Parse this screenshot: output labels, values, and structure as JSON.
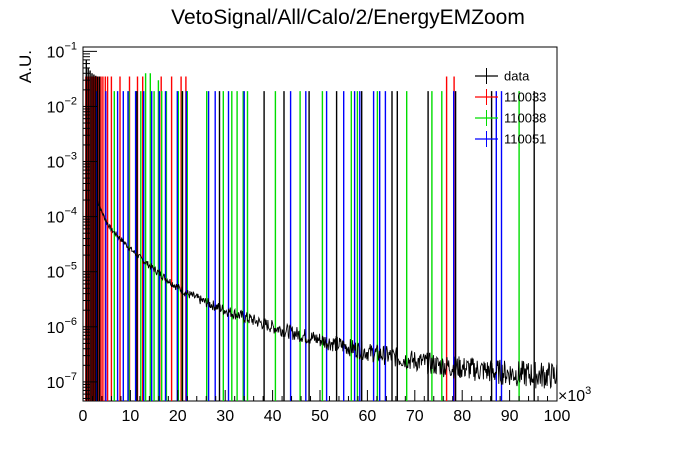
{
  "chart_data": {
    "type": "line",
    "title": "VetoSignal/All/Calo/2/EnergyEMZoom",
    "ylabel": "A.U.",
    "xlabel": "",
    "x_multiplier_label": "×10",
    "x_multiplier_exponent": "3",
    "xlim": [
      0,
      100000
    ],
    "ylim": [
      4.5e-08,
      0.12
    ],
    "y_scale": "log",
    "grid": false,
    "legend_position": "top-right",
    "x_ticks": [
      0,
      10000,
      20000,
      30000,
      40000,
      50000,
      60000,
      70000,
      80000,
      90000,
      100000
    ],
    "x_tick_labels": [
      "0",
      "10",
      "20",
      "30",
      "40",
      "50",
      "60",
      "70",
      "80",
      "90",
      "100"
    ],
    "y_ticks": [
      1e-07,
      1e-06,
      1e-05,
      0.0001,
      0.001,
      0.01,
      0.1
    ],
    "y_tick_labels": [
      {
        "base": "10",
        "exp": "−7"
      },
      {
        "base": "10",
        "exp": "−6"
      },
      {
        "base": "10",
        "exp": "−5"
      },
      {
        "base": "10",
        "exp": "−4"
      },
      {
        "base": "10",
        "exp": "−3"
      },
      {
        "base": "10",
        "exp": "−2"
      },
      {
        "base": "10",
        "exp": "−1"
      }
    ],
    "series": [
      {
        "name": "data",
        "color": "#000000",
        "style": "histogram",
        "points": [
          [
            3000,
            0.0002
          ],
          [
            4000,
            0.00012
          ],
          [
            5000,
            8e-05
          ],
          [
            6000,
            5.8e-05
          ],
          [
            8000,
            3.9e-05
          ],
          [
            10000,
            2.6e-05
          ],
          [
            12000,
            1.8e-05
          ],
          [
            14000,
            1.3e-05
          ],
          [
            16000,
            9.5e-06
          ],
          [
            18000,
            7e-06
          ],
          [
            20000,
            5.2e-06
          ],
          [
            22000,
            4e-06
          ],
          [
            25000,
            3e-06
          ],
          [
            30000,
            2e-06
          ],
          [
            35000,
            1.4e-06
          ],
          [
            40000,
            1e-06
          ],
          [
            45000,
            7.5e-07
          ],
          [
            50000,
            5.8e-07
          ],
          [
            55000,
            4.5e-07
          ],
          [
            60000,
            3.5e-07
          ],
          [
            65000,
            2.9e-07
          ],
          [
            70000,
            2.4e-07
          ],
          [
            75000,
            2e-07
          ],
          [
            80000,
            1.8e-07
          ],
          [
            85000,
            1.6e-07
          ],
          [
            90000,
            1.45e-07
          ],
          [
            95000,
            1.35e-07
          ],
          [
            100000,
            1.3e-07
          ]
        ]
      },
      {
        "name": "110033",
        "color": "#ff0000",
        "style": "spikes",
        "spikes": [
          [
            600,
            0.035
          ],
          [
            900,
            0.035
          ],
          [
            1200,
            0.035
          ],
          [
            1500,
            0.035
          ],
          [
            1800,
            0.035
          ],
          [
            2100,
            0.035
          ],
          [
            2400,
            0.035
          ],
          [
            2700,
            0.035
          ],
          [
            3000,
            0.035
          ],
          [
            3400,
            0.035
          ],
          [
            3800,
            0.035
          ],
          [
            4200,
            0.035
          ],
          [
            4700,
            0.035
          ],
          [
            5200,
            0.035
          ],
          [
            6000,
            0.035
          ],
          [
            7800,
            0.035
          ],
          [
            9800,
            0.035
          ],
          [
            11500,
            0.035
          ],
          [
            12600,
            0.035
          ],
          [
            16500,
            0.035
          ],
          [
            18700,
            0.035
          ],
          [
            20700,
            0.035
          ],
          [
            21700,
            0.035
          ],
          [
            76700,
            0.035
          ],
          [
            78300,
            0.035
          ]
        ]
      },
      {
        "name": "110038",
        "color": "#00dd00",
        "style": "spikes",
        "spikes": [
          [
            6600,
            0.019
          ],
          [
            9700,
            0.019
          ],
          [
            11200,
            0.019
          ],
          [
            12200,
            0.019
          ],
          [
            13200,
            0.04
          ],
          [
            14200,
            0.04
          ],
          [
            15000,
            0.019
          ],
          [
            15900,
            0.03
          ],
          [
            16600,
            0.019
          ],
          [
            17600,
            0.019
          ],
          [
            20100,
            0.019
          ],
          [
            20900,
            0.019
          ],
          [
            21900,
            0.019
          ],
          [
            22000,
            0.019
          ],
          [
            26100,
            0.019
          ],
          [
            29600,
            0.019
          ],
          [
            31400,
            0.019
          ],
          [
            32500,
            0.019
          ],
          [
            33800,
            0.019
          ],
          [
            34700,
            0.019
          ],
          [
            40600,
            0.019
          ],
          [
            45800,
            0.019
          ],
          [
            50500,
            0.019
          ],
          [
            56600,
            0.019
          ],
          [
            57900,
            0.019
          ],
          [
            62100,
            0.019
          ],
          [
            68300,
            0.019
          ],
          [
            73600,
            0.019
          ],
          [
            75700,
            0.019
          ],
          [
            92000,
            0.019
          ]
        ]
      },
      {
        "name": "110051",
        "color": "#0000ff",
        "style": "spikes",
        "spikes": [
          [
            2900,
            0.019
          ],
          [
            4800,
            0.019
          ],
          [
            7300,
            0.019
          ],
          [
            8500,
            0.019
          ],
          [
            9500,
            0.019
          ],
          [
            11100,
            0.019
          ],
          [
            12800,
            0.019
          ],
          [
            14500,
            0.019
          ],
          [
            16100,
            0.019
          ],
          [
            17400,
            0.019
          ],
          [
            19900,
            0.019
          ],
          [
            21800,
            0.019
          ],
          [
            26500,
            0.019
          ],
          [
            27900,
            0.019
          ],
          [
            30700,
            0.019
          ],
          [
            34000,
            0.019
          ],
          [
            43800,
            0.019
          ],
          [
            47000,
            0.019
          ],
          [
            51400,
            0.019
          ],
          [
            55000,
            0.019
          ],
          [
            57300,
            0.019
          ],
          [
            58400,
            0.019
          ],
          [
            61300,
            0.019
          ],
          [
            62600,
            0.019
          ],
          [
            63800,
            0.019
          ],
          [
            78200,
            0.019
          ],
          [
            87200,
            0.019
          ],
          [
            88300,
            0.019
          ]
        ]
      },
      {
        "name": "",
        "color": "#000000",
        "style": "spikes",
        "spikes": [
          [
            700,
            0.07
          ],
          [
            1100,
            0.05
          ],
          [
            1500,
            0.045
          ],
          [
            1900,
            0.04
          ],
          [
            2300,
            0.038
          ],
          [
            2700,
            0.036
          ],
          [
            3100,
            0.035
          ],
          [
            3500,
            0.035
          ],
          [
            11400,
            0.019
          ],
          [
            21000,
            0.019
          ],
          [
            28800,
            0.019
          ],
          [
            38200,
            0.019
          ],
          [
            42400,
            0.019
          ],
          [
            47700,
            0.019
          ],
          [
            53500,
            0.019
          ],
          [
            58800,
            0.019
          ],
          [
            65200,
            0.019
          ],
          [
            66300,
            0.019
          ],
          [
            72800,
            0.019
          ],
          [
            78600,
            0.019
          ],
          [
            86200,
            0.019
          ],
          [
            95200,
            0.019
          ]
        ]
      }
    ]
  },
  "legend": [
    {
      "label": "data",
      "color": "#000000"
    },
    {
      "label": "110033",
      "color": "#ff0000"
    },
    {
      "label": "110038",
      "color": "#00dd00"
    },
    {
      "label": "110051",
      "color": "#0000ff"
    }
  ]
}
